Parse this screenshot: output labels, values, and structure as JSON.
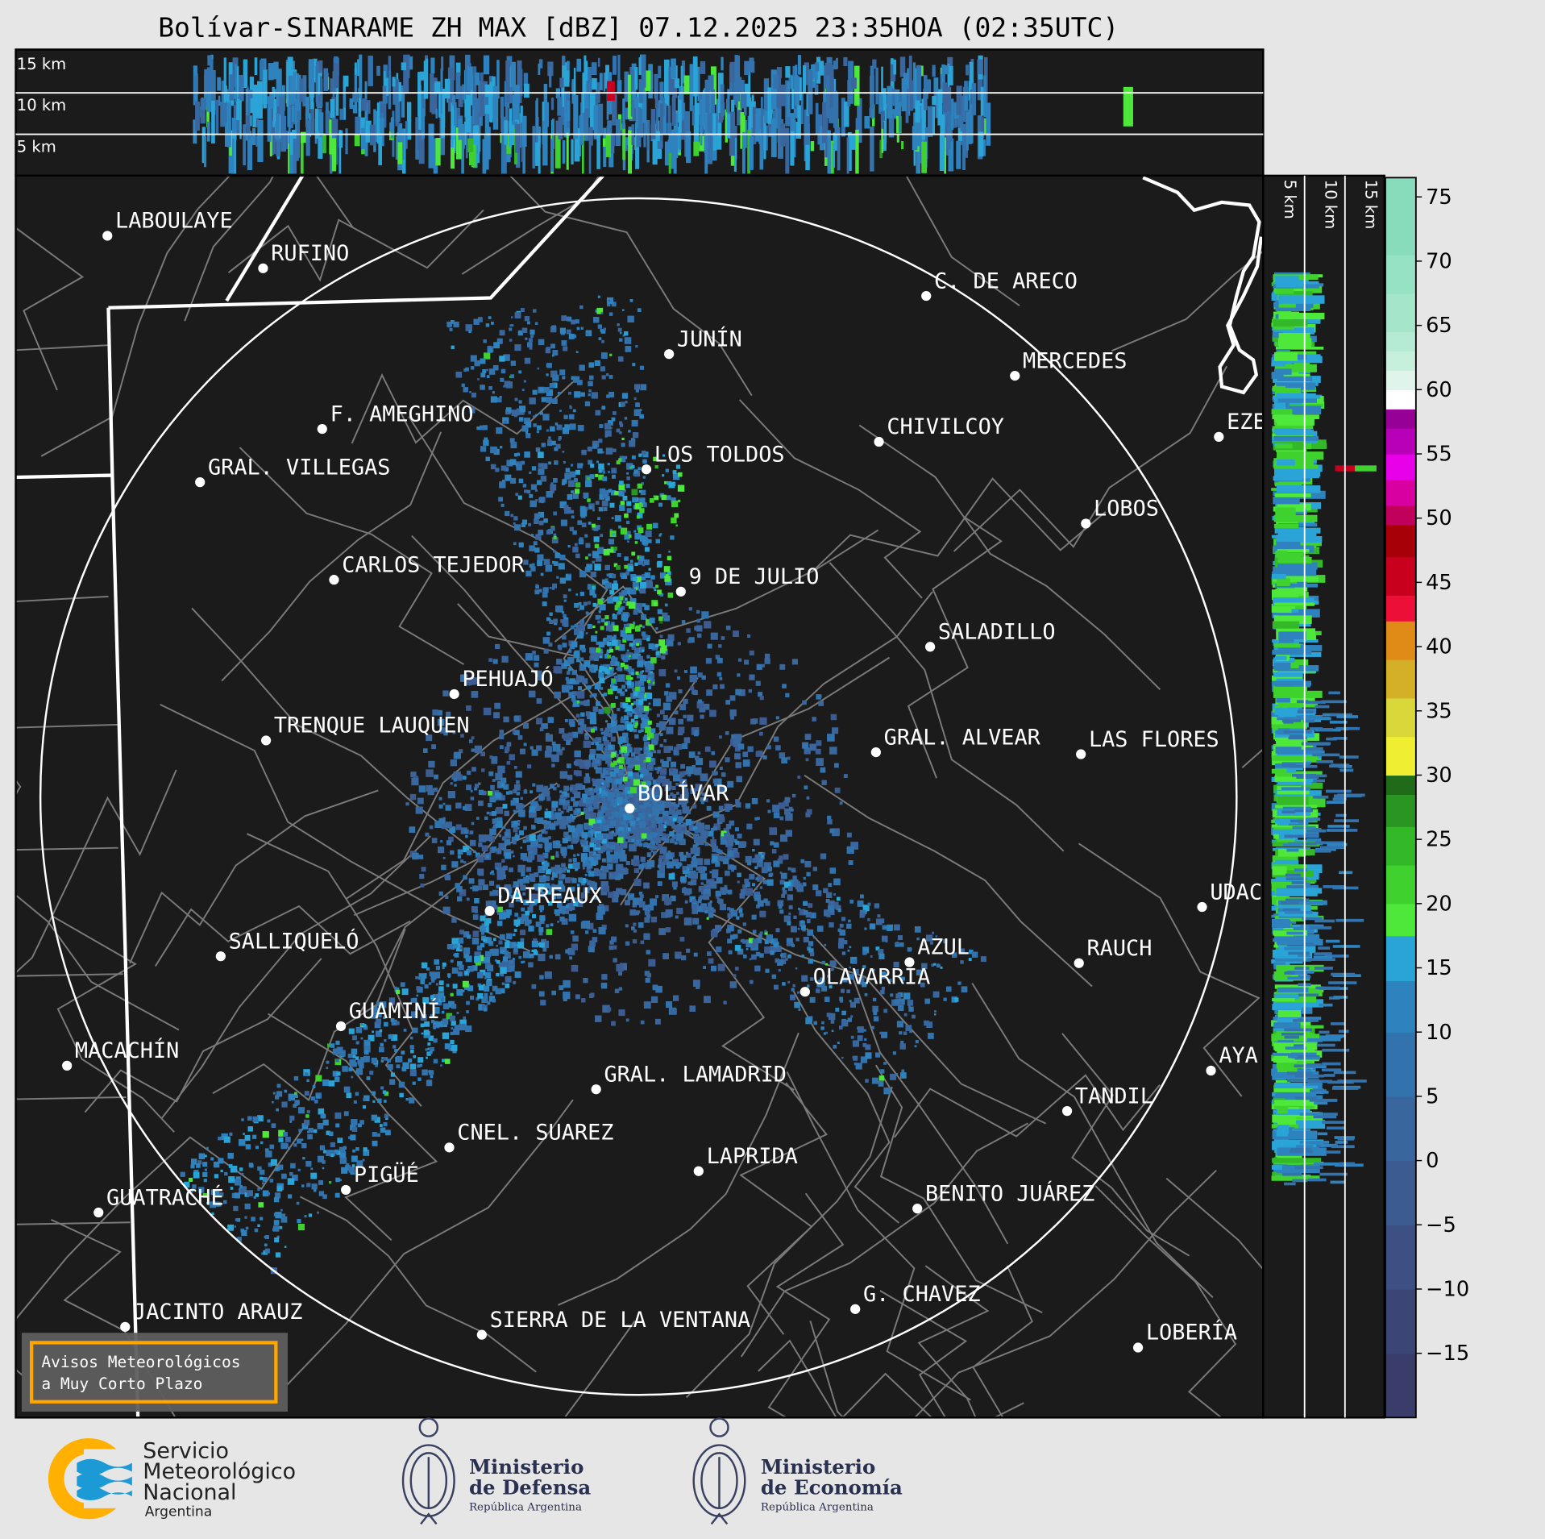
{
  "title": "Bolívar-SINARAME ZH MAX [dBZ] 07.12.2025 23:35HOA (02:35UTC)",
  "cross_section_top": {
    "labels": [
      "15 km",
      "10 km",
      "5 km"
    ]
  },
  "cross_section_side": {
    "labels": [
      "5 km",
      "10 km",
      "15 km"
    ]
  },
  "radar_center": "BOLÍVAR",
  "cities": [
    "LABOULAYE",
    "RUFINO",
    "C. DE ARECO",
    "JUNÍN",
    "MERCEDES",
    "F. AMEGHINO",
    "CHIVILCOY",
    "EZE",
    "LOS TOLDOS",
    "GRAL. VILLEGAS",
    "LOBOS",
    "CARLOS TEJEDOR",
    "9 DE JULIO",
    "SALADILLO",
    "PEHUAJÓ",
    "TRENQUE LAUQUEN",
    "GRAL. ALVEAR",
    "LAS FLORES",
    "BOLÍVAR",
    "DAIREAUX",
    "UDAC",
    "SALLIQUELÓ",
    "AZUL",
    "RAUCH",
    "OLAVARRÍA",
    "GUAMINÍ",
    "MACACHÍN",
    "AYA",
    "GRAL. LAMADRID",
    "TANDIL",
    "CNEL. SUAREZ",
    "LAPRIDA",
    "PIGÜÉ",
    "GUATRACHÉ",
    "BENITO JUÁREZ",
    "G. CHAVEZ",
    "JACINTO ARAUZ",
    "SIERRA DE LA VENTANA",
    "LOBERÍA"
  ],
  "colorbar": {
    "unit": "dBZ",
    "range": [
      -20,
      76.5
    ],
    "ticks": [
      "−15",
      "−10",
      "−5",
      "0",
      "5",
      "10",
      "15",
      "20",
      "25",
      "30",
      "35",
      "40",
      "45",
      "50",
      "55",
      "60",
      "65",
      "70",
      "75"
    ],
    "tick_values": [
      -15,
      -10,
      -5,
      0,
      5,
      10,
      15,
      20,
      25,
      30,
      35,
      40,
      45,
      50,
      55,
      60,
      65,
      70,
      75
    ],
    "bands": [
      {
        "from": -20,
        "to": -15,
        "color": "#3a3d6a"
      },
      {
        "from": -15,
        "to": -10,
        "color": "#3b4677"
      },
      {
        "from": -10,
        "to": -5,
        "color": "#3c5084"
      },
      {
        "from": -5,
        "to": 0,
        "color": "#3c5b91"
      },
      {
        "from": 0,
        "to": 5,
        "color": "#3a669e"
      },
      {
        "from": 5,
        "to": 10,
        "color": "#3373ad"
      },
      {
        "from": 10,
        "to": 14,
        "color": "#2e83be"
      },
      {
        "from": 14,
        "to": 17.5,
        "color": "#2aa3d6"
      },
      {
        "from": 17.5,
        "to": 20,
        "color": "#4ee83a"
      },
      {
        "from": 20,
        "to": 23,
        "color": "#3fd22f"
      },
      {
        "from": 23,
        "to": 26,
        "color": "#33b828"
      },
      {
        "from": 26,
        "to": 28.5,
        "color": "#2a9522"
      },
      {
        "from": 28.5,
        "to": 30,
        "color": "#1f6b1a"
      },
      {
        "from": 30,
        "to": 33,
        "color": "#f0ee30"
      },
      {
        "from": 33,
        "to": 36,
        "color": "#d8d83a"
      },
      {
        "from": 36,
        "to": 39,
        "color": "#d4b028"
      },
      {
        "from": 39,
        "to": 42,
        "color": "#e08a18"
      },
      {
        "from": 42,
        "to": 44,
        "color": "#ec1038"
      },
      {
        "from": 44,
        "to": 47,
        "color": "#c8001e"
      },
      {
        "from": 47,
        "to": 49.5,
        "color": "#a80008"
      },
      {
        "from": 49.5,
        "to": 51,
        "color": "#c0005a"
      },
      {
        "from": 51,
        "to": 53,
        "color": "#d800a0"
      },
      {
        "from": 53,
        "to": 55,
        "color": "#e800e8"
      },
      {
        "from": 55,
        "to": 57,
        "color": "#b800b8"
      },
      {
        "from": 57,
        "to": 58.5,
        "color": "#960096"
      },
      {
        "from": 58.5,
        "to": 60,
        "color": "#ffffff"
      },
      {
        "from": 60,
        "to": 61.5,
        "color": "#dff4ea"
      },
      {
        "from": 61.5,
        "to": 63,
        "color": "#c6efdc"
      },
      {
        "from": 63,
        "to": 64.5,
        "color": "#b5ebd4"
      },
      {
        "from": 64.5,
        "to": 67.5,
        "color": "#a5e6cb"
      },
      {
        "from": 67.5,
        "to": 70.5,
        "color": "#96e2c5"
      },
      {
        "from": 70.5,
        "to": 76.5,
        "color": "#88dcbc"
      }
    ]
  },
  "warning_box": {
    "line1": "Avisos Meteorológicos",
    "line2": "a Muy Corto Plazo",
    "border_color": "#ffa500"
  },
  "logos": {
    "smn": {
      "line1": "Servicio",
      "line2": "Meteorológico",
      "line3": "Nacional",
      "line4": "Argentina"
    },
    "defensa": {
      "line1": "Ministerio",
      "line2": "de Defensa",
      "line3": "República Argentina"
    },
    "economia": {
      "line1": "Ministerio",
      "line2": "de Economía",
      "line3": "República Argentina"
    }
  }
}
